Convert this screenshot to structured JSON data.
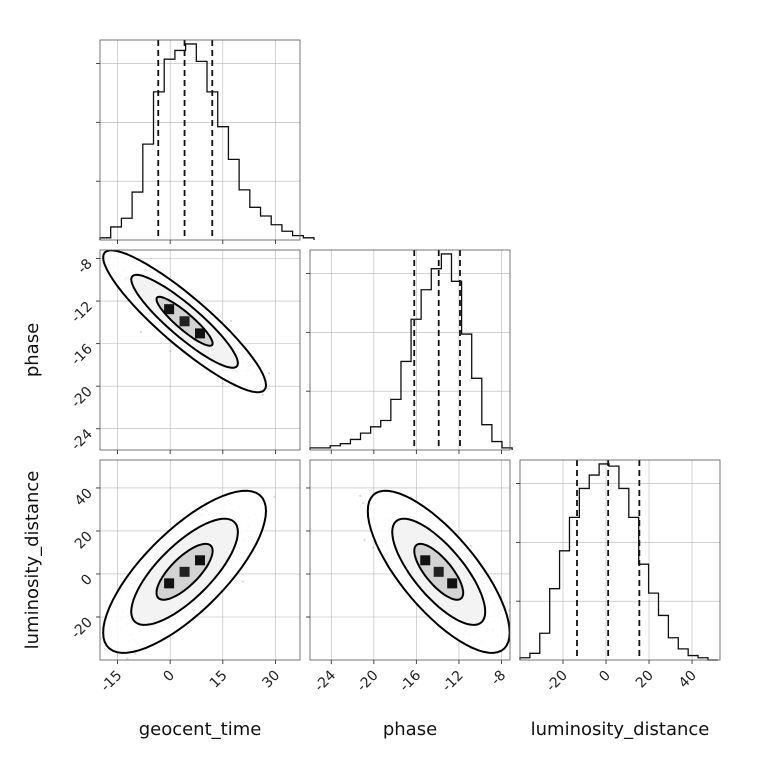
{
  "chart_data": {
    "type": "corner",
    "parameters": [
      "geocent_time",
      "phase",
      "luminosity_distance"
    ],
    "axis_ranges": {
      "geocent_time": [
        -20,
        37
      ],
      "phase": [
        -26,
        -7.2
      ],
      "luminosity_distance": [
        -40,
        53
      ]
    },
    "ticks": {
      "geocent_time": [
        "-15",
        "0",
        "15",
        "30"
      ],
      "phase_diagonal": [
        "-24",
        "-20",
        "-16",
        "-12",
        "-8"
      ],
      "phase_offdiag": [
        "-8",
        "-12",
        "-16",
        "-20",
        "-24"
      ],
      "luminosity_distance_diagonal": [
        "-20",
        "0",
        "20",
        "40"
      ],
      "luminosity_distance_offdiag": [
        "40",
        "20",
        "0",
        "-20"
      ]
    },
    "quantiles": {
      "geocent_time": [
        -3.4,
        4.1,
        12.0
      ],
      "phase": [
        -16.2,
        -13.9,
        -11.9
      ],
      "luminosity_distance": [
        -13.5,
        1.0,
        15.5
      ]
    },
    "histograms": {
      "geocent_time": {
        "x0": -20,
        "width": 3.05,
        "counts": [
          1,
          6,
          10,
          22,
          44,
          68,
          83,
          87,
          90,
          82,
          68,
          52,
          37,
          23,
          15,
          11,
          7,
          4,
          2,
          1
        ]
      },
      "phase": {
        "x0": -26,
        "width": 0.95,
        "counts": [
          1,
          1,
          2,
          3,
          5,
          8,
          11,
          14,
          24,
          42,
          62,
          76,
          86,
          93,
          80,
          55,
          34,
          12,
          4,
          1
        ]
      },
      "luminosity_distance": {
        "x0": -40,
        "width": 4.6,
        "counts": [
          1,
          3,
          12,
          32,
          49,
          64,
          77,
          83,
          88,
          87,
          77,
          64,
          43,
          30,
          20,
          10,
          5,
          2,
          1,
          0
        ]
      }
    },
    "scatter_2d": [
      {
        "x": "geocent_time",
        "y": "phase",
        "mean": [
          4.1,
          -13.9
        ],
        "sd": [
          8.0,
          2.3
        ],
        "rho": -0.9
      },
      {
        "x": "geocent_time",
        "y": "luminosity_distance",
        "mean": [
          4.1,
          1.0
        ],
        "sd": [
          8.0,
          13.0
        ],
        "rho": 0.75
      },
      {
        "x": "phase",
        "y": "luminosity_distance",
        "mean": [
          -13.9,
          1.0
        ],
        "sd": [
          2.3,
          13.0
        ],
        "rho": -0.75
      }
    ],
    "contour_levels": [
      1.0,
      1.9,
      2.9
    ],
    "xlabels": [
      "geocent_time",
      "phase",
      "luminosity_distance"
    ],
    "ylabels": [
      "phase",
      "luminosity_distance"
    ]
  }
}
